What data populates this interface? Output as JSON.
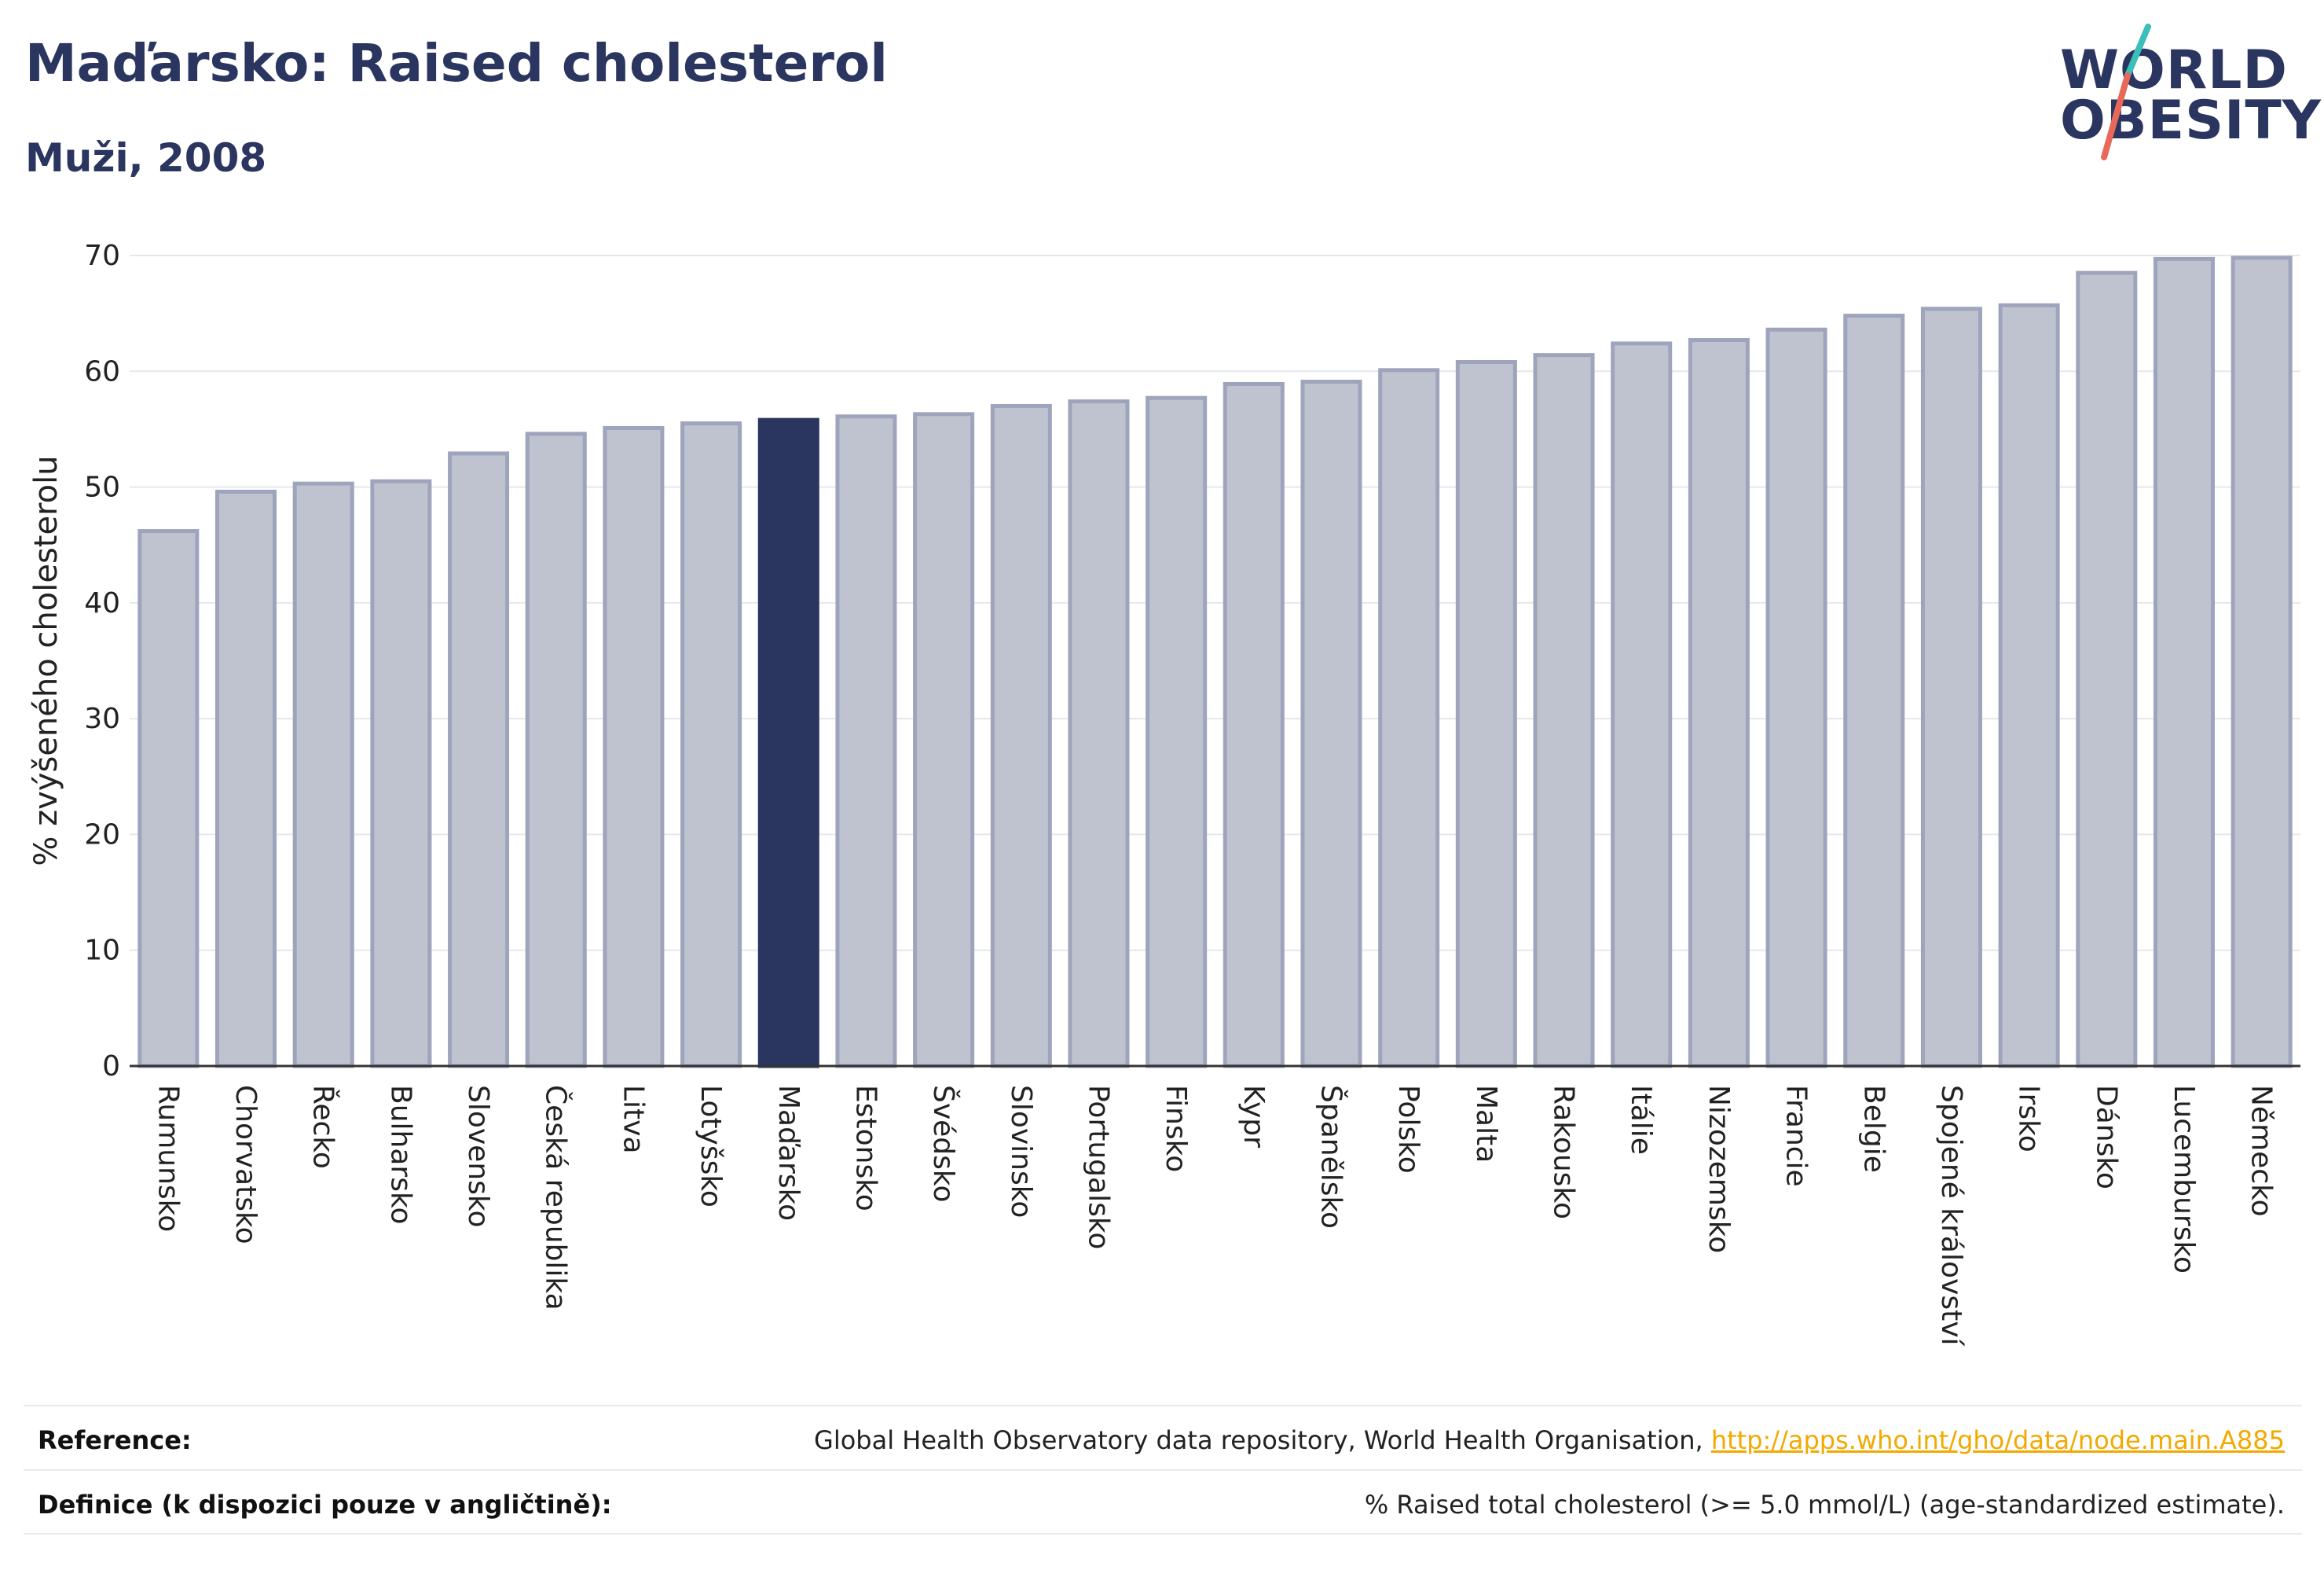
{
  "header": {
    "title": "Maďarsko: Raised cholesterol",
    "subtitle": "Muži, 2008"
  },
  "logo": {
    "line1": "WORLD",
    "line2": "OBESITY",
    "accent_colors": [
      "#3bbfb8",
      "#e8685a"
    ]
  },
  "colors": {
    "bar_default": "#bfc3d0",
    "bar_default_stroke": "#9ea4bb",
    "bar_highlight": "#2a3560",
    "text": "#2a3560",
    "link": "#f2a900"
  },
  "chart_data": {
    "type": "bar",
    "title": "Maďarsko: Raised cholesterol",
    "subtitle": "Muži, 2008",
    "xlabel": "",
    "ylabel": "% zvýšeného cholesterolu",
    "ylim": [
      0,
      70
    ],
    "yticks": [
      0,
      10,
      20,
      30,
      40,
      50,
      60,
      70
    ],
    "grid": true,
    "highlight": "Maďarsko",
    "categories": [
      "Rumunsko",
      "Chorvatsko",
      "Řecko",
      "Bulharsko",
      "Slovensko",
      "Česká republika",
      "Litva",
      "Lotyšsko",
      "Maďarsko",
      "Estonsko",
      "Švédsko",
      "Slovinsko",
      "Portugalsko",
      "Finsko",
      "Kypr",
      "Španělsko",
      "Polsko",
      "Malta",
      "Rakousko",
      "Itálie",
      "Nizozemsko",
      "Francie",
      "Belgie",
      "Spojené království",
      "Irsko",
      "Dánsko",
      "Lucembursko",
      "Německo"
    ],
    "values": [
      46.2,
      49.6,
      50.3,
      50.5,
      52.9,
      54.6,
      55.1,
      55.5,
      55.8,
      56.1,
      56.3,
      57.0,
      57.4,
      57.7,
      58.9,
      59.1,
      60.1,
      60.8,
      61.4,
      62.4,
      62.7,
      63.6,
      64.8,
      65.4,
      65.7,
      68.5,
      69.7,
      69.8
    ]
  },
  "footer": {
    "reference_label": "Reference:",
    "reference_text": "Global Health Observatory data repository, World Health Organisation,",
    "reference_link": "http://apps.who.int/gho/data/node.main.A885",
    "definition_label": "Definice (k dispozici pouze v angličtině):",
    "definition_text": "% Raised total cholesterol (>= 5.0 mmol/L) (age-standardized estimate)."
  }
}
